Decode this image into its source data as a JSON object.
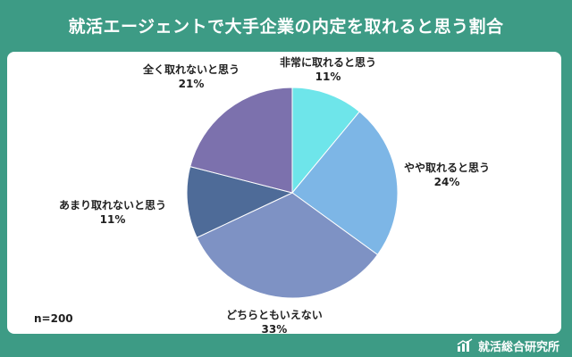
{
  "title": "就活エージェントで大手企業の内定を取れると思う割合",
  "sample_note": "n=200",
  "brand": "就活総合研究所",
  "colors": {
    "background": "#3d9b85",
    "card": "#ffffff"
  },
  "chart_data": {
    "type": "pie",
    "slices": [
      {
        "label": "非常に取れると思う",
        "value": 11,
        "value_label": "11%",
        "color": "#6ee5ea"
      },
      {
        "label": "やや取れると思う",
        "value": 24,
        "value_label": "24%",
        "color": "#7db6e6"
      },
      {
        "label": "どちらともいえない",
        "value": 33,
        "value_label": "33%",
        "color": "#7e92c4"
      },
      {
        "label": "あまり取れないと思う",
        "value": 11,
        "value_label": "11%",
        "color": "#4e6b98"
      },
      {
        "label": "全く取れないと思う",
        "value": 21,
        "value_label": "21%",
        "color": "#7c71ad"
      }
    ]
  }
}
